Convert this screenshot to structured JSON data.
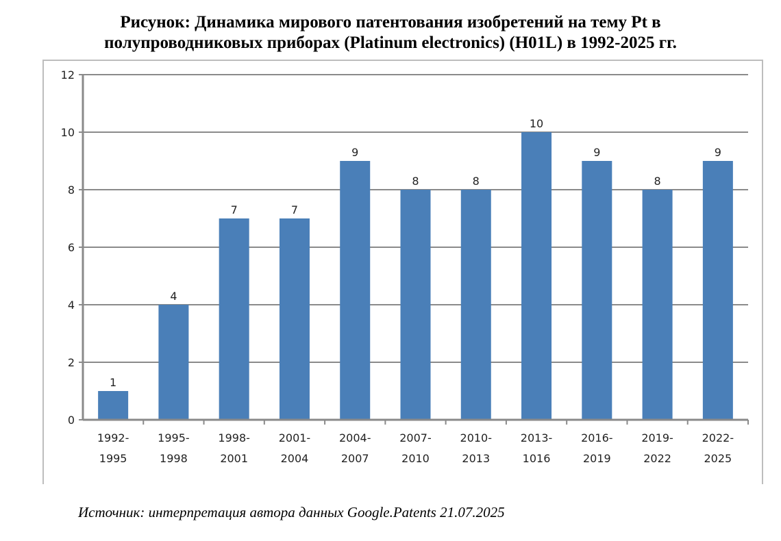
{
  "chart_data": {
    "type": "bar",
    "title": "Рисунок: Динамика мирового патентования изобретений на тему Pt в полупроводниковых приборах (Platinum electronics) (H01L) в 1992-2025 гг.",
    "title_lines": [
      "Рисунок: Динамика мирового патентования изобретений на тему Pt в",
      "полупроводниковых приборах (Platinum electronics) (H01L) в 1992-2025 гг."
    ],
    "categories": [
      [
        "1992-",
        "1995"
      ],
      [
        "1995-",
        "1998"
      ],
      [
        "1998-",
        "2001"
      ],
      [
        "2001-",
        "2004"
      ],
      [
        "2004-",
        "2007"
      ],
      [
        "2007-",
        "2010"
      ],
      [
        "2010-",
        "2013"
      ],
      [
        "2013-",
        "1016"
      ],
      [
        "2016-",
        "2019"
      ],
      [
        "2019-",
        "2022"
      ],
      [
        "2022-",
        "2025"
      ]
    ],
    "values": [
      1,
      4,
      7,
      7,
      9,
      8,
      8,
      10,
      9,
      8,
      9
    ],
    "data_labels": true,
    "xlabel": "",
    "ylabel": "",
    "ylim": [
      0,
      12
    ],
    "yticks": [
      0,
      2,
      4,
      6,
      8,
      10,
      12
    ],
    "grid": true,
    "bar_color": "#4a7fb8"
  },
  "source": "Источник: интерпретация автора данных Google.Patents 21.07.2025"
}
